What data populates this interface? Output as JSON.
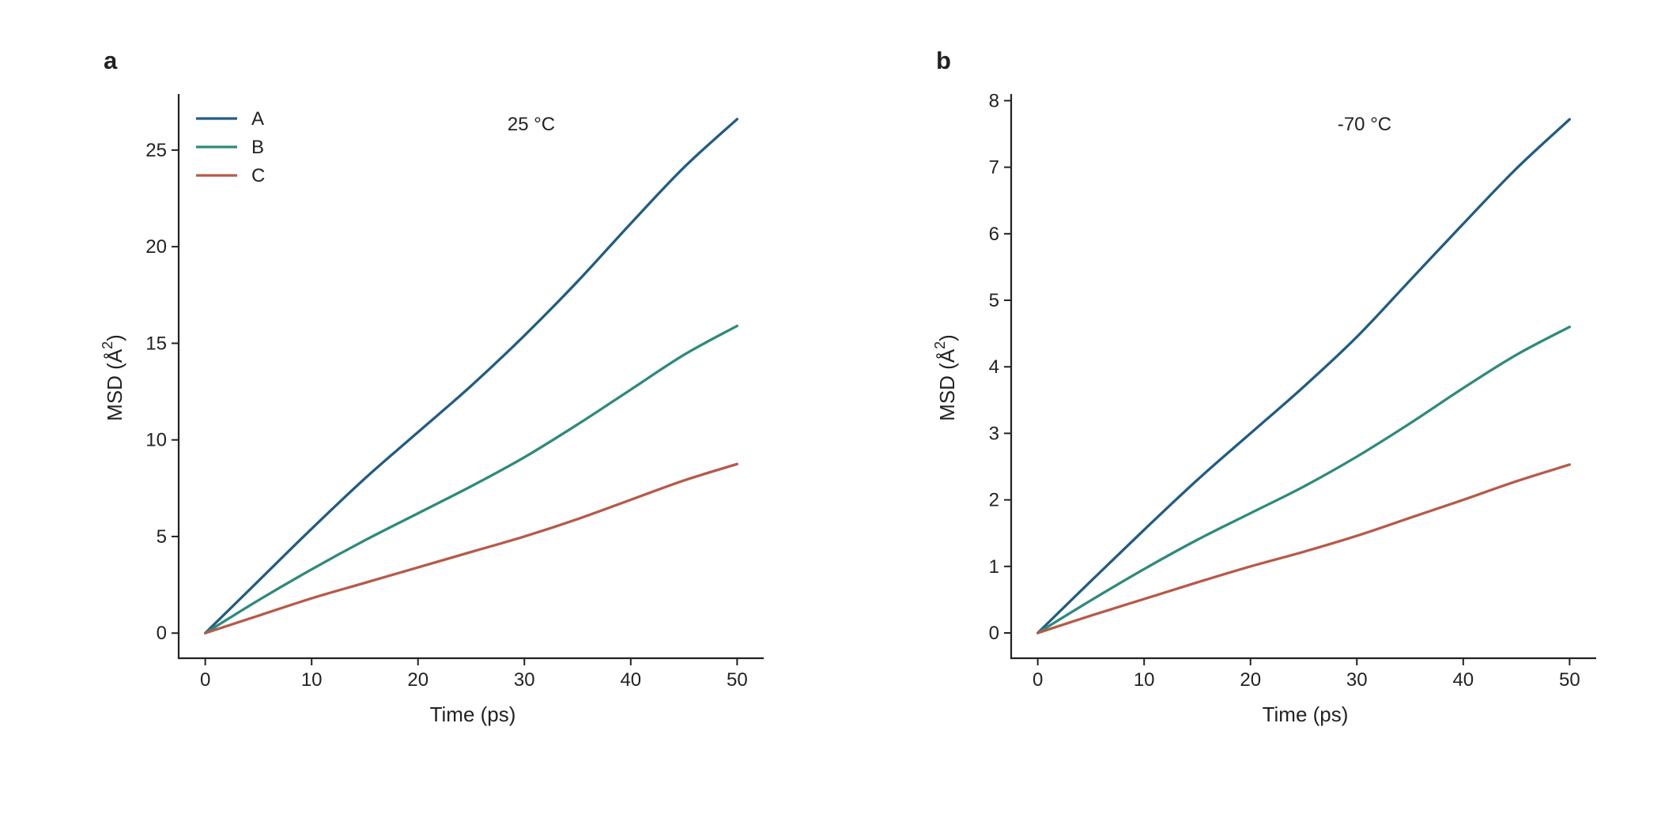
{
  "panels": [
    {
      "letter": "a",
      "annotation": "25 °C",
      "show_legend": true,
      "legend_placement": "top-left"
    },
    {
      "letter": "b",
      "annotation": "-70 °C",
      "show_legend": false,
      "legend_placement": ""
    }
  ],
  "chart_data": [
    {
      "type": "line",
      "title": "",
      "xlabel": "Time (ps)",
      "ylabel": "MSD (Å²)",
      "ylabel_base": "MSD (Å",
      "ylabel_sup": "2",
      "ylabel_close": ")",
      "xlim": [
        -2.5,
        52.5
      ],
      "ylim": [
        -1.3,
        27.9
      ],
      "xticks": [
        0,
        10,
        20,
        30,
        40,
        50
      ],
      "yticks": [
        0,
        5,
        10,
        15,
        20,
        25
      ],
      "grid": false,
      "legend": "top-left",
      "x": [
        0,
        5,
        10,
        15,
        20,
        25,
        30,
        35,
        40,
        45,
        50
      ],
      "series": [
        {
          "name": "A",
          "color": "#215c84",
          "values": [
            0,
            2.7,
            5.4,
            8.0,
            10.4,
            12.8,
            15.4,
            18.2,
            21.2,
            24.1,
            26.6
          ]
        },
        {
          "name": "B",
          "color": "#2f8a7b",
          "values": [
            0,
            1.7,
            3.3,
            4.8,
            6.2,
            7.6,
            9.1,
            10.8,
            12.6,
            14.4,
            15.9
          ]
        },
        {
          "name": "C",
          "color": "#b65a48",
          "values": [
            0,
            0.9,
            1.8,
            2.6,
            3.4,
            4.2,
            5.0,
            5.9,
            6.9,
            7.9,
            8.75
          ]
        }
      ]
    },
    {
      "type": "line",
      "title": "",
      "xlabel": "Time (ps)",
      "ylabel": "MSD (Å²)",
      "ylabel_base": "MSD (Å",
      "ylabel_sup": "2",
      "ylabel_close": ")",
      "xlim": [
        -2.5,
        52.5
      ],
      "ylim": [
        -0.38,
        8.1
      ],
      "xticks": [
        0,
        10,
        20,
        30,
        40,
        50
      ],
      "yticks": [
        0,
        1,
        2,
        3,
        4,
        5,
        6,
        7,
        8
      ],
      "grid": false,
      "legend": "none",
      "x": [
        0,
        5,
        10,
        15,
        20,
        25,
        30,
        35,
        40,
        45,
        50
      ],
      "series": [
        {
          "name": "A",
          "color": "#215c84",
          "values": [
            0,
            0.78,
            1.55,
            2.3,
            3.0,
            3.7,
            4.45,
            5.3,
            6.15,
            6.98,
            7.72
          ]
        },
        {
          "name": "B",
          "color": "#2f8a7b",
          "values": [
            0,
            0.49,
            0.96,
            1.4,
            1.8,
            2.2,
            2.65,
            3.15,
            3.68,
            4.18,
            4.6
          ]
        },
        {
          "name": "C",
          "color": "#b65a48",
          "values": [
            0,
            0.26,
            0.51,
            0.76,
            1.0,
            1.22,
            1.46,
            1.73,
            2.0,
            2.28,
            2.53
          ]
        }
      ]
    }
  ]
}
